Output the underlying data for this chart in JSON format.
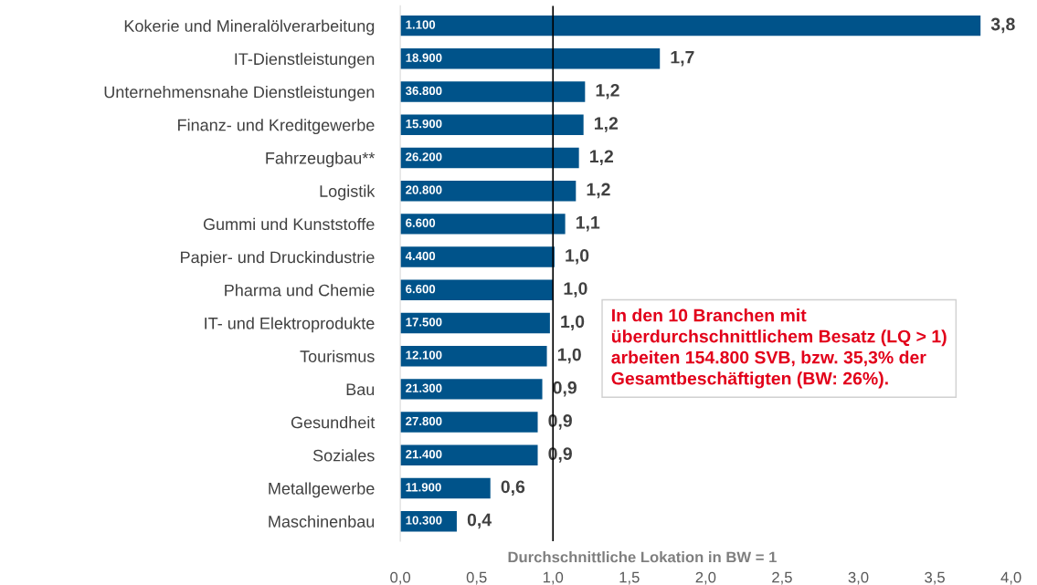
{
  "chart_data": {
    "type": "bar",
    "orientation": "horizontal",
    "categories": [
      "Kokerie und Mineralölverarbeitung",
      "IT-Dienstleistungen",
      "Unternehmensnahe Dienstleistungen",
      "Finanz- und Kreditgewerbe",
      "Fahrzeugbau**",
      "Logistik",
      "Gummi und Kunststoffe",
      "Papier- und Druckindustrie",
      "Pharma und Chemie",
      "IT- und Elektroprodukte",
      "Tourismus",
      "Bau",
      "Gesundheit",
      "Soziales",
      "Metallgewerbe",
      "Maschinenbau"
    ],
    "values": [
      3.8,
      1.7,
      1.21,
      1.2,
      1.17,
      1.15,
      1.08,
      1.01,
      1.0,
      0.98,
      0.96,
      0.93,
      0.9,
      0.9,
      0.59,
      0.37
    ],
    "value_labels": [
      "3,8",
      "1,7",
      "1,2",
      "1,2",
      "1,2",
      "1,2",
      "1,1",
      "1,0",
      "1,0",
      "1,0",
      "1,0",
      "0,9",
      "0,9",
      "0,9",
      "0,6",
      "0,4"
    ],
    "color": "#00538a",
    "xlim": [
      0,
      4
    ],
    "xticks": [
      {
        "value": 0,
        "label": "0,0"
      },
      {
        "value": 0.5,
        "label": "0,5"
      },
      {
        "value": 1,
        "label": "1,0"
      },
      {
        "value": 1.5,
        "label": "1,5"
      },
      {
        "value": 2,
        "label": "2,0"
      },
      {
        "value": 2.5,
        "label": "2,5"
      },
      {
        "value": 3,
        "label": "3,0"
      },
      {
        "value": 3.5,
        "label": "3,5"
      },
      {
        "value": 4,
        "label": "4,0"
      }
    ],
    "grid": false,
    "ref_lines": [
      {
        "axis": "x",
        "value": 1,
        "label": "Durchschnittliche Lokation in BW = 1",
        "color": "#000000"
      }
    ],
    "annotations": [
      "1.100",
      "18.900",
      "36.800",
      "15.900",
      "26.200",
      "20.800",
      "6.600",
      "4.400",
      "6.600",
      "17.500",
      "12.100",
      "21.300",
      "27.800",
      "21.400",
      "11.900",
      "10.300",
      "In den 10 Branchen mit\nüberdurchschnittlichem Besatz (LQ > 1)\narbeiten 154.800 SVB, bzw. 35,3% der\nGesamtbeschäftigten (BW: 26%)."
    ]
  }
}
